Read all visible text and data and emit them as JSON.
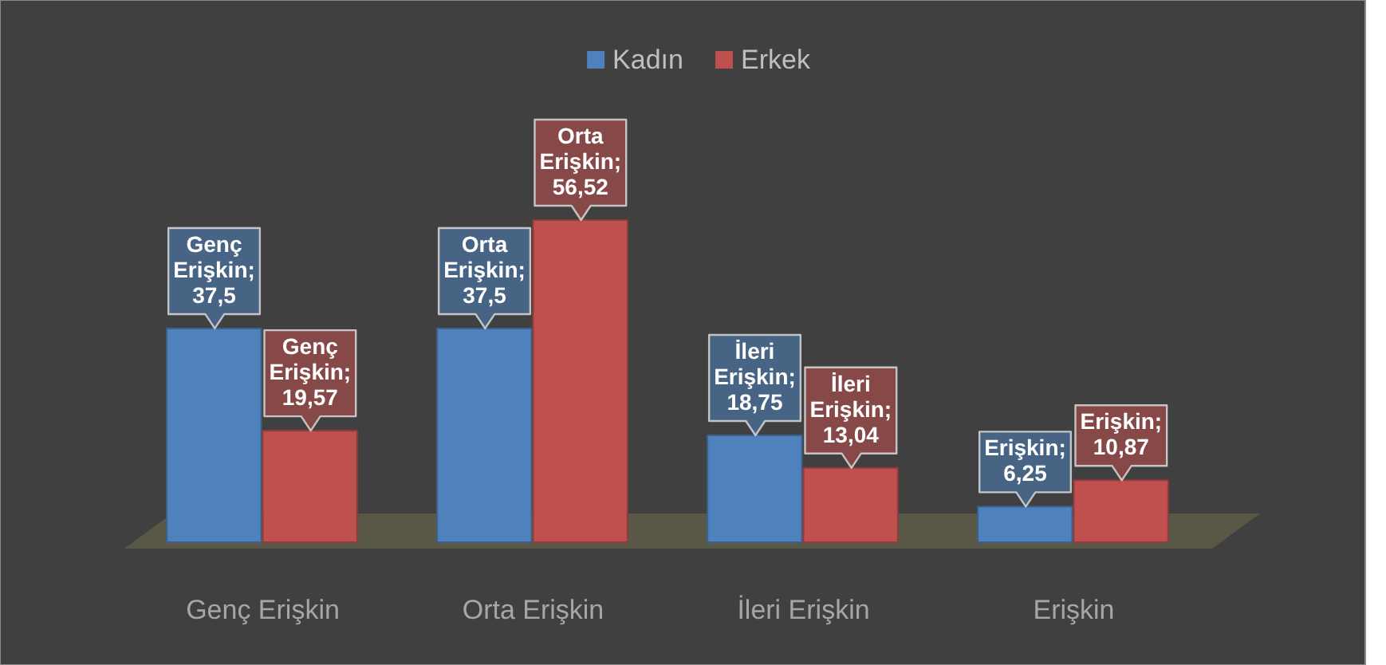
{
  "chart_data": {
    "type": "bar",
    "categories": [
      "Genç Erişkin",
      "Orta Erişkin",
      "İleri Erişkin",
      "Erişkin"
    ],
    "series": [
      {
        "name": "Kadın",
        "color": "#4f81bd",
        "values": [
          37.5,
          37.5,
          18.75,
          6.25
        ],
        "value_labels": [
          "Genç Erişkin; 37,5",
          "Orta Erişkin; 37,5",
          "İleri Erişkin; 18,75",
          "Erişkin; 6,25"
        ]
      },
      {
        "name": "Erkek",
        "color": "#c0504d",
        "values": [
          19.57,
          56.52,
          13.04,
          10.87
        ],
        "value_labels": [
          "Genç Erişkin; 19,57",
          "Orta Erişkin; 56,52",
          "İleri Erişkin; 13,04",
          "Erişkin; 10,87"
        ]
      }
    ],
    "legend": "top",
    "tick_labels": "x"
  }
}
